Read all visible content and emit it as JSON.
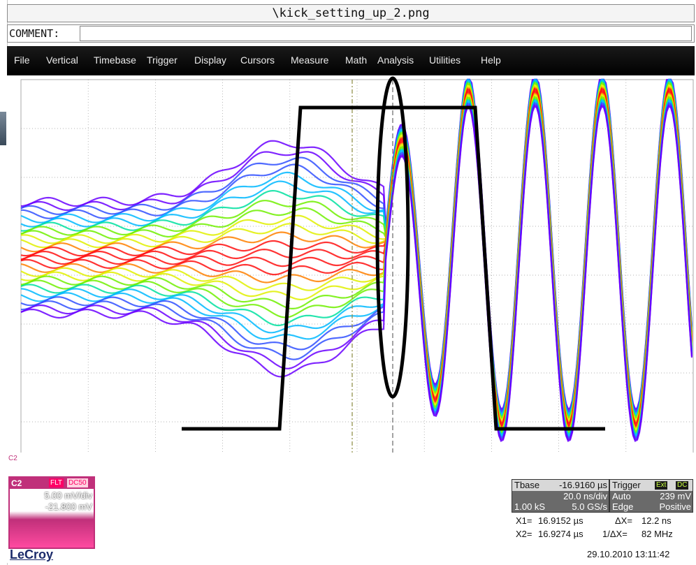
{
  "window": {
    "title": "\\kick_setting_up_2.png"
  },
  "comment": {
    "label": "COMMENT:",
    "value": ""
  },
  "menu": {
    "items": [
      "File",
      "Vertical",
      "Timebase",
      "Trigger",
      "Display",
      "Cursors",
      "Measure",
      "Math",
      "Analysis",
      "Utilities",
      "Help"
    ]
  },
  "channel": {
    "name": "C2",
    "tag": "C2",
    "coupling_flt": "FLT",
    "coupling_dc": "DC50",
    "volts_per_div": "5.00 mV/div",
    "offset": "-21.800 mV"
  },
  "timebase": {
    "label": "Tbase",
    "delay": "-16.9160 µs",
    "time_per_div": "20.0 ns/div",
    "samples": "1.00 kS",
    "rate": "5.0 GS/s"
  },
  "trigger": {
    "label": "Trigger",
    "src": "Ext",
    "coupling": "DC",
    "mode": "Auto",
    "level": "239 mV",
    "type": "Edge",
    "slope": "Positive"
  },
  "cursors": {
    "x1_label": "X1=",
    "x1": "16.9152 µs",
    "x2_label": "X2=",
    "x2": "16.9274 µs",
    "dx_label": "ΔX=",
    "dx": "12.2 ns",
    "inv_dx_label": "1/ΔX=",
    "inv_dx": "82 MHz"
  },
  "brand": "LeCroy",
  "datetime": "29.10.2010 13:11:42",
  "colors": {
    "menubar": "#000000",
    "channel": "#c0307a",
    "grid": "#9a9a9a"
  }
}
